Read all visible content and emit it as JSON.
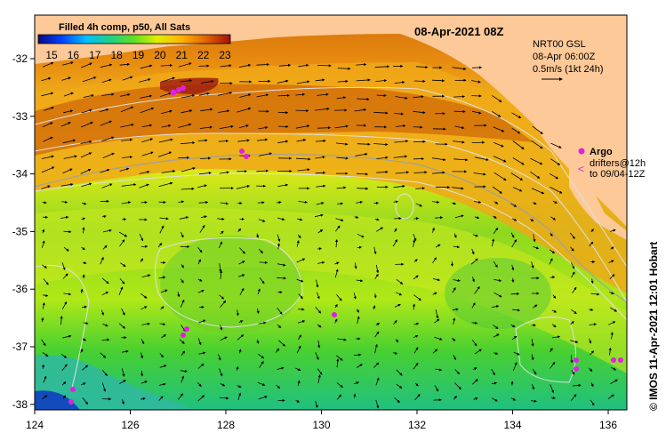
{
  "map": {
    "date_title": "08-Apr-2021 08Z",
    "colorbar": {
      "title": "Filled 4h comp, p50, All Sats",
      "ticks": [
        "15",
        "16",
        "17",
        "18",
        "19",
        "20",
        "21",
        "22",
        "23"
      ]
    },
    "x_ticks": [
      "124",
      "126",
      "128",
      "130",
      "132",
      "134",
      "136"
    ],
    "y_ticks": [
      "-32",
      "-33",
      "-34",
      "-35",
      "-36",
      "-37",
      "-38"
    ],
    "current_info": {
      "line1": "NRT00 GSL",
      "line2": "08-Apr 06:00Z",
      "line3": "0.5m/s (1kt 24h)"
    },
    "argo": {
      "label": "Argo",
      "drifters_line1": "drifters@12h",
      "drifters_line2": "to 09/04-12Z"
    },
    "credit": "© IMOS 11-Apr-2021 12:01 Hobart",
    "colors": {
      "land": "#fec998",
      "argo_magenta": "#e020e0",
      "contour": "#d8d8d8"
    }
  }
}
